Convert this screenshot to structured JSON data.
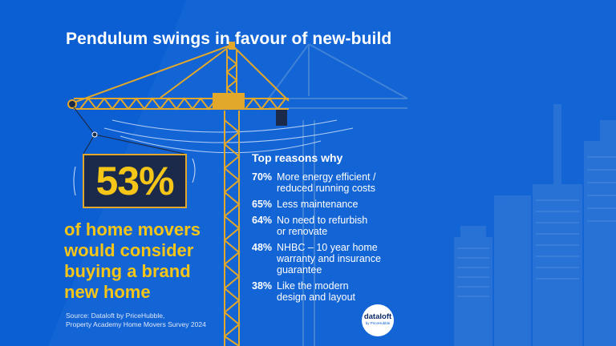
{
  "title": "Pendulum swings in favour of new-build",
  "big_stat": "53%",
  "headline_lines": [
    "of home movers",
    "would consider",
    "buying a brand",
    "new home"
  ],
  "reasons_heading": "Top reasons why",
  "reasons": [
    {
      "pct": "70%",
      "lines": [
        "More energy efficient /",
        "reduced running costs"
      ]
    },
    {
      "pct": "65%",
      "lines": [
        "Less maintenance"
      ]
    },
    {
      "pct": "64%",
      "lines": [
        "No need to refurbish",
        "or renovate"
      ]
    },
    {
      "pct": "48%",
      "lines": [
        "NHBC – 10 year home",
        "warranty and insurance",
        "guarantee"
      ]
    },
    {
      "pct": "38%",
      "lines": [
        "Like the modern",
        "design and layout"
      ]
    }
  ],
  "source_lines": [
    "Source: Dataloft by PriceHubble,",
    "Property Academy Home Movers Survey 2024"
  ],
  "logo": {
    "main": "dataloft",
    "sub": "by PriceHubble"
  },
  "colors": {
    "background": "#0b5fd3",
    "accent": "#f5c518",
    "text": "#ffffff",
    "crane": "#e2a82b"
  }
}
